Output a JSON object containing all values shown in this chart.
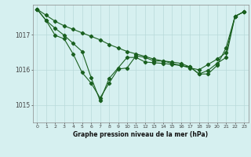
{
  "xlabel": "Graphe pression niveau de la mer (hPa)",
  "bg_color": "#d6f0f0",
  "grid_color": "#b8dada",
  "line_color": "#1a6020",
  "marker": "D",
  "markersize": 2.2,
  "linewidth": 0.8,
  "xlim": [
    -0.5,
    23.5
  ],
  "ylim": [
    1014.5,
    1017.85
  ],
  "yticks": [
    1015,
    1016,
    1017
  ],
  "xticks": [
    0,
    1,
    2,
    3,
    4,
    5,
    6,
    7,
    8,
    9,
    10,
    11,
    12,
    13,
    14,
    15,
    16,
    17,
    18,
    19,
    20,
    21,
    22,
    23
  ],
  "series": [
    [
      1017.72,
      1017.55,
      1017.38,
      1017.25,
      1017.15,
      1017.05,
      1016.95,
      1016.85,
      1016.72,
      1016.62,
      1016.52,
      1016.45,
      1016.38,
      1016.3,
      1016.25,
      1016.18,
      1016.12,
      1016.05,
      1016.0,
      1016.15,
      1016.3,
      1016.48,
      1017.52,
      1017.65
    ],
    [
      1017.72,
      1017.4,
      1016.98,
      1016.88,
      1016.45,
      1015.92,
      1015.62,
      1015.2,
      1015.62,
      1016.02,
      1016.05,
      1016.4,
      1016.35,
      1016.25,
      1016.25,
      1016.22,
      1016.18,
      1016.08,
      1015.88,
      1015.98,
      1016.18,
      1016.35,
      1017.52,
      1017.65
    ],
    [
      1017.72,
      1017.4,
      1017.18,
      1016.98,
      1016.75,
      1016.52,
      1015.78,
      1015.12,
      1015.75,
      1016.05,
      1016.35,
      1016.35,
      1016.22,
      1016.2,
      1016.18,
      1016.15,
      1016.12,
      1016.08,
      1015.88,
      1015.88,
      1016.12,
      1016.62,
      1017.52,
      1017.65
    ]
  ]
}
